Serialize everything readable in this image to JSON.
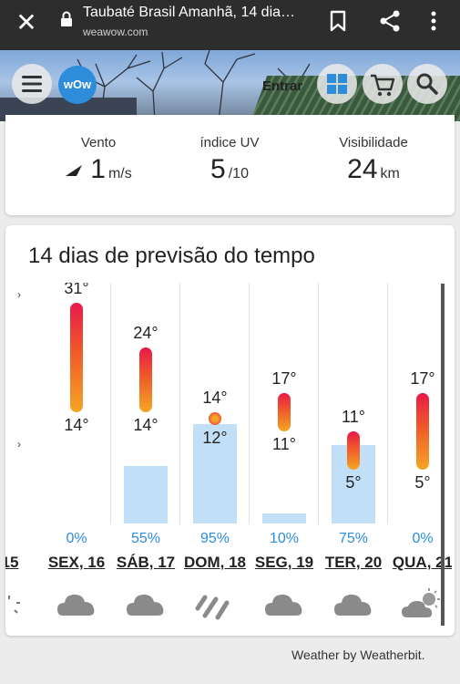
{
  "browser": {
    "title": "Taubaté Brasil Amanhã, 14 dia…",
    "url": "weawow.com"
  },
  "header": {
    "logo_text": "wOw",
    "login_label": "Entrar"
  },
  "stats": {
    "wind": {
      "label": "Vento",
      "value": "1",
      "unit": "m/s"
    },
    "uv": {
      "label": "índice UV",
      "value": "5",
      "unit": "/10"
    },
    "visibility": {
      "label": "Visibilidade",
      "value": "24",
      "unit": "km"
    }
  },
  "forecast": {
    "title": "14 dias de previsão do tempo",
    "partial_day": "15",
    "days": [
      {
        "day": "SEX, 16",
        "high": "31°",
        "low": "14°",
        "high_val": 31,
        "low_val": 14,
        "precip": "0%",
        "precip_val": 0,
        "icon": "cloud-icon"
      },
      {
        "day": "SÁB, 17",
        "high": "24°",
        "low": "14°",
        "high_val": 24,
        "low_val": 14,
        "precip": "55%",
        "precip_val": 55,
        "icon": "cloud-icon"
      },
      {
        "day": "DOM, 18",
        "high": "14°",
        "low": "12°",
        "high_val": 14,
        "low_val": 12,
        "precip": "95%",
        "precip_val": 95,
        "icon": "heavy-rain-icon"
      },
      {
        "day": "SEG, 19",
        "high": "17°",
        "low": "11°",
        "high_val": 17,
        "low_val": 11,
        "precip": "10%",
        "precip_val": 10,
        "icon": "cloud-icon"
      },
      {
        "day": "TER, 20",
        "high": "11°",
        "low": "5°",
        "high_val": 11,
        "low_val": 5,
        "precip": "75%",
        "precip_val": 75,
        "icon": "cloud-icon"
      },
      {
        "day": "QUA, 21",
        "high": "17°",
        "low": "5°",
        "high_val": 17,
        "low_val": 5,
        "precip": "0%",
        "precip_val": 0,
        "icon": "partly-cloudy-icon"
      }
    ]
  },
  "footer": {
    "credit": "Weather by Weatherbit."
  },
  "colors": {
    "accent": "#2d8ddb",
    "precip": "#c2dff8",
    "temp_hot": "#e8194a",
    "temp_warm": "#f5a623"
  }
}
